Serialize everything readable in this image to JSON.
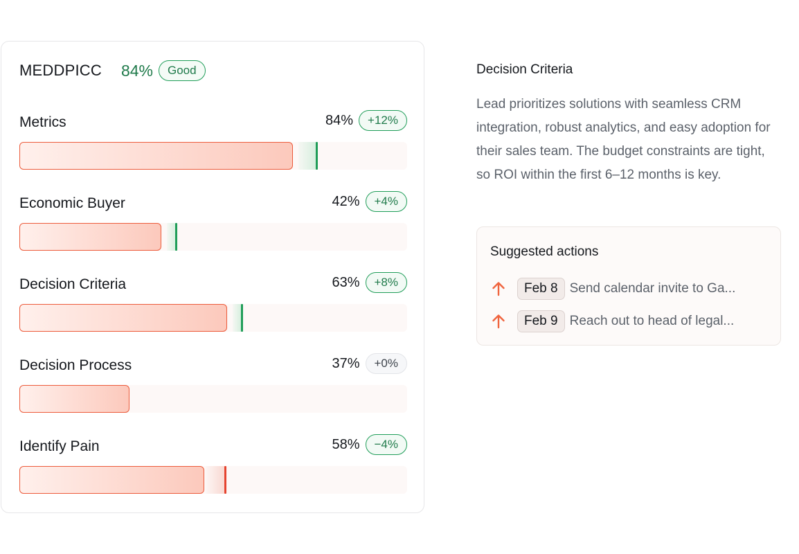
{
  "scorecard": {
    "title": "MEDDPICC",
    "score": "84%",
    "rating": "Good",
    "metrics": [
      {
        "label": "Metrics",
        "percent": "84%",
        "delta": "+12%",
        "value": 0.84,
        "prior": 0.72,
        "trend": "up"
      },
      {
        "label": "Economic Buyer",
        "percent": "42%",
        "delta": "+4%",
        "value": 0.42,
        "prior": 0.38,
        "trend": "up"
      },
      {
        "label": "Decision Criteria",
        "percent": "63%",
        "delta": "+8%",
        "value": 0.63,
        "prior": 0.55,
        "trend": "up"
      },
      {
        "label": "Decision Process",
        "percent": "37%",
        "delta": "+0%",
        "value": 0.37,
        "prior": 0.37,
        "trend": "flat"
      },
      {
        "label": "Identify Pain",
        "percent": "58%",
        "delta": "−4%",
        "value": 0.58,
        "prior": 0.62,
        "trend": "down"
      }
    ]
  },
  "detail": {
    "title": "Decision Criteria",
    "description": "Lead prioritizes solutions with seamless CRM integration, robust analytics, and easy adoption for their sales team. The budget constraints are tight, so ROI within the first 6–12 months is key."
  },
  "actions": {
    "title": "Suggested actions",
    "items": [
      {
        "icon": "arrow-up-icon",
        "date": "Feb 8",
        "text": "Send calendar invite to Ga..."
      },
      {
        "icon": "arrow-up-icon",
        "date": "Feb 9",
        "text": "Reach out to head of legal..."
      }
    ]
  },
  "colors": {
    "positive": "#1f9d58",
    "negative": "#e5432f",
    "bar_border": "#ec5a3a",
    "action_arrow": "#f0643e"
  }
}
